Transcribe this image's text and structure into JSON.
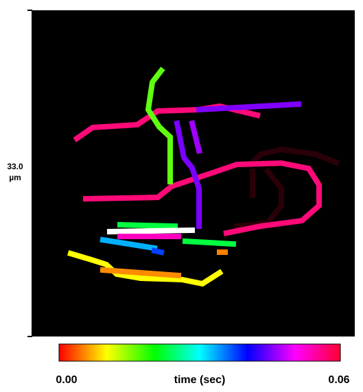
{
  "image": {
    "scale_label": {
      "value": "33.0",
      "unit": "µm"
    }
  },
  "colorbar": {
    "label": "time (sec)",
    "range": [
      0,
      0.06
    ],
    "ticks": [
      {
        "value": 0,
        "label": "0.00"
      },
      {
        "value": 0.06,
        "label": "0.06"
      }
    ]
  }
}
